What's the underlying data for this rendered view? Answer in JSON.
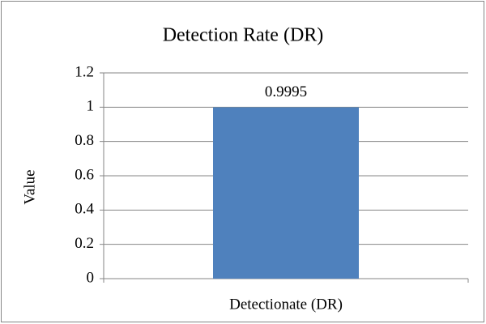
{
  "chart_data": {
    "type": "bar",
    "title": "Detection Rate (DR)",
    "y_label": "Value",
    "categories": [
      "Detectionate (DR)"
    ],
    "values": [
      0.9995
    ],
    "color": "#4f81bd",
    "ylim": [
      0,
      1.2
    ],
    "yticks": [
      0,
      0.2,
      0.4,
      0.6,
      0.8,
      1,
      1.2
    ],
    "grid": true
  }
}
